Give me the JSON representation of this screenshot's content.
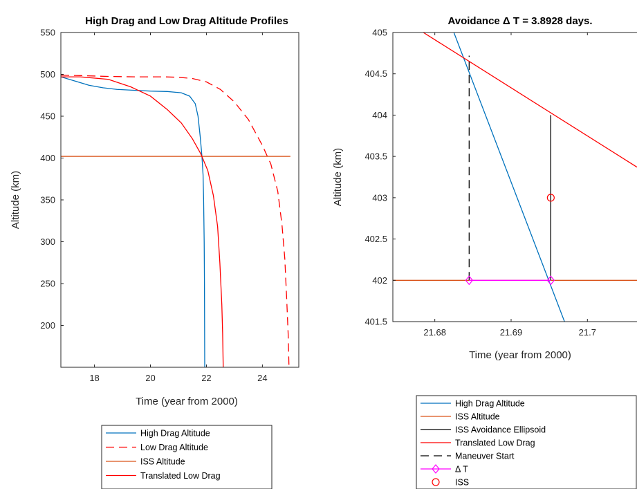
{
  "chart_data": [
    {
      "type": "line",
      "title": "High Drag and Low Drag Altitude Profiles",
      "xlabel": "Time (year from 2000)",
      "ylabel": "Altitude (km)",
      "xlim": [
        16.8,
        25.3
      ],
      "ylim": [
        150,
        550
      ],
      "xticks": [
        18,
        20,
        22,
        24
      ],
      "yticks": [
        200,
        250,
        300,
        350,
        400,
        450,
        500,
        550
      ],
      "grid": false,
      "legend": "below",
      "series": [
        {
          "name": "High Drag Altitude",
          "color": "#0072BD",
          "dash": "solid",
          "points": [
            [
              16.8,
              497
            ],
            [
              17.3,
              492
            ],
            [
              17.8,
              487
            ],
            [
              18.3,
              484
            ],
            [
              18.8,
              482
            ],
            [
              19.4,
              481
            ],
            [
              20,
              480
            ],
            [
              20.6,
              479.5
            ],
            [
              21.1,
              478
            ],
            [
              21.4,
              474
            ],
            [
              21.6,
              465
            ],
            [
              21.7,
              450
            ],
            [
              21.78,
              425
            ],
            [
              21.84,
              402
            ],
            [
              21.88,
              380
            ],
            [
              21.9,
              350
            ],
            [
              21.92,
              300
            ],
            [
              21.93,
              250
            ],
            [
              21.935,
              200
            ],
            [
              21.94,
              150
            ]
          ]
        },
        {
          "name": "Low Drag Altitude",
          "color": "#FF0000",
          "dash": "dashed",
          "points": [
            [
              16.8,
              499
            ],
            [
              17.5,
              498.5
            ],
            [
              18.5,
              497.5
            ],
            [
              19.5,
              497
            ],
            [
              20.5,
              497
            ],
            [
              21,
              496.5
            ],
            [
              21.5,
              495
            ],
            [
              22,
              491
            ],
            [
              22.5,
              482
            ],
            [
              23,
              467
            ],
            [
              23.5,
              446
            ],
            [
              24,
              415
            ],
            [
              24.3,
              393
            ],
            [
              24.55,
              360
            ],
            [
              24.7,
              320
            ],
            [
              24.8,
              280
            ],
            [
              24.87,
              230
            ],
            [
              24.92,
              190
            ],
            [
              24.95,
              150
            ]
          ]
        },
        {
          "name": "ISS Altitude",
          "color": "#D95319",
          "dash": "solid",
          "points": [
            [
              16.8,
              402
            ],
            [
              25.0,
              402
            ]
          ]
        },
        {
          "name": "Translated Low Drag",
          "color": "#FF0000",
          "dash": "solid",
          "points": [
            [
              16.8,
              497
            ],
            [
              17.5,
              497
            ],
            [
              18.5,
              494
            ],
            [
              19.3,
              485
            ],
            [
              20,
              474
            ],
            [
              20.6,
              458
            ],
            [
              21.1,
              442
            ],
            [
              21.5,
              423
            ],
            [
              21.8,
              405
            ],
            [
              22.05,
              385
            ],
            [
              22.25,
              355
            ],
            [
              22.4,
              318
            ],
            [
              22.48,
              275
            ],
            [
              22.55,
              225
            ],
            [
              22.58,
              190
            ],
            [
              22.6,
              150
            ]
          ]
        }
      ]
    },
    {
      "type": "line",
      "title": "Avoidance Δ T = 3.8928 days.",
      "xlabel": "Time (year from 2000)",
      "ylabel": "Altitude (km)",
      "xlim": [
        21.6745,
        21.7065
      ],
      "ylim": [
        401.5,
        405
      ],
      "xticks": [
        21.68,
        21.69,
        21.7
      ],
      "xtick_labels": [
        "21.68",
        "21.69",
        "21.7"
      ],
      "yticks": [
        401.5,
        402,
        402.5,
        403,
        403.5,
        404,
        404.5,
        405
      ],
      "ytick_labels": [
        "401.5",
        "402",
        "402.5",
        "403",
        "403.5",
        "404",
        "404.5",
        "405"
      ],
      "grid": false,
      "legend": "below",
      "series": [
        {
          "name": "High Drag Altitude",
          "color": "#0072BD",
          "dash": "solid",
          "points": [
            [
              21.6825,
              405.0
            ],
            [
              21.697,
              401.5
            ]
          ]
        },
        {
          "name": "ISS Altitude",
          "color": "#D95319",
          "dash": "solid",
          "points": [
            [
              21.6745,
              402
            ],
            [
              21.7065,
              402
            ]
          ]
        },
        {
          "name": "ISS Avoidance Ellipsoid",
          "color": "#000000",
          "dash": "solid",
          "points": [
            [
              21.6952,
              402
            ],
            [
              21.6952,
              404
            ]
          ]
        },
        {
          "name": "Translated Low Drag",
          "color": "#FF0000",
          "dash": "solid",
          "points": [
            [
              21.6785,
              405.0
            ],
            [
              21.7065,
              403.37
            ]
          ]
        },
        {
          "name": "Maneuver Start",
          "color": "#000000",
          "dash": "dashed",
          "points": [
            [
              21.6845,
              402
            ],
            [
              21.6845,
              404.72
            ]
          ]
        },
        {
          "name": "Δ T",
          "color": "#FF00FF",
          "dash": "solid",
          "marker": "diamond",
          "points": [
            [
              21.6845,
              402
            ],
            [
              21.6952,
              402
            ]
          ]
        },
        {
          "name": "ISS",
          "color": "#FF0000",
          "dash": "none",
          "marker": "circle",
          "points": [
            [
              21.6952,
              403
            ]
          ]
        }
      ]
    }
  ]
}
